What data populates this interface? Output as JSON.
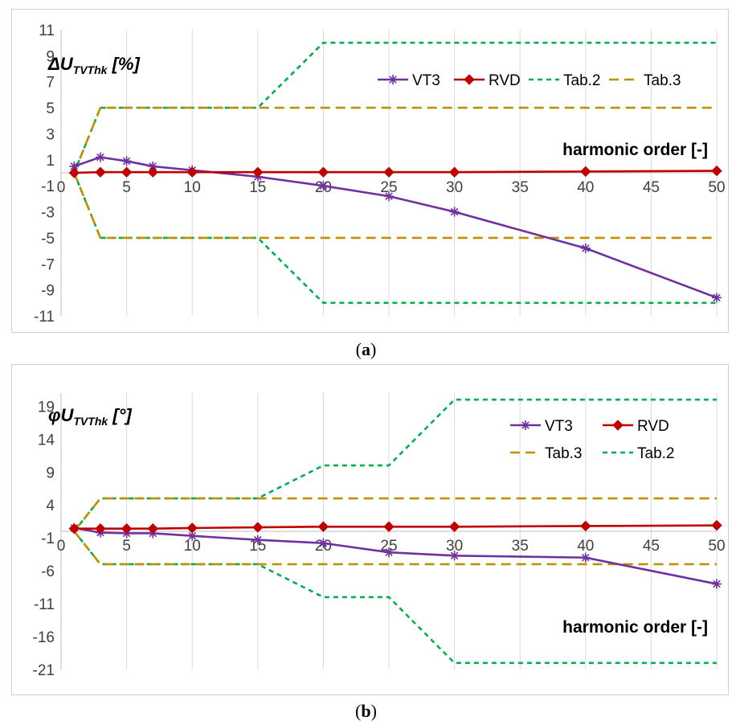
{
  "chart_data": [
    {
      "type": "line",
      "ylabel_main": "ΔU",
      "ylabel_sub": "TVThk",
      "ylabel_unit": "[%]",
      "xlabel": "harmonic order [-]",
      "xlim": [
        0,
        50
      ],
      "ylim": [
        -11,
        11
      ],
      "xticks": [
        0,
        5,
        10,
        15,
        20,
        25,
        30,
        35,
        40,
        45,
        50
      ],
      "yticks": [
        11,
        9,
        7,
        5,
        3,
        1,
        -1,
        -3,
        -5,
        -7,
        -9,
        -11
      ],
      "grid": "vertical",
      "legend": "top-right, one row",
      "colors": {
        "VT3": "#7030a0",
        "RVD": "#c00000",
        "Tab.2": "#00b050",
        "Tab.3": "#bf9000"
      },
      "series": [
        {
          "name": "VT3",
          "marker": "asterisk",
          "x": [
            1,
            3,
            5,
            7,
            10,
            15,
            20,
            25,
            30,
            40,
            50
          ],
          "y": [
            0.5,
            1.2,
            0.9,
            0.5,
            0.2,
            -0.3,
            -1.0,
            -1.8,
            -3.0,
            -5.8,
            -9.6
          ]
        },
        {
          "name": "RVD",
          "marker": "diamond",
          "x": [
            1,
            3,
            5,
            7,
            10,
            15,
            20,
            25,
            30,
            40,
            50
          ],
          "y": [
            0.0,
            0.05,
            0.05,
            0.05,
            0.05,
            0.05,
            0.05,
            0.05,
            0.05,
            0.1,
            0.15
          ]
        },
        {
          "name": "Tab.2",
          "dash": "short",
          "x": [
            1,
            3,
            15,
            20,
            50
          ],
          "y": [
            0,
            5,
            5,
            10,
            10
          ],
          "mirror": true
        },
        {
          "name": "Tab.3",
          "dash": "long",
          "x": [
            1,
            3,
            50
          ],
          "y": [
            0,
            5,
            5
          ],
          "mirror": true
        }
      ],
      "legend_order": [
        "VT3",
        "RVD",
        "Tab.2",
        "Tab.3"
      ],
      "caption": "a"
    },
    {
      "type": "line",
      "ylabel_main": "φU",
      "ylabel_sub": "TVThk",
      "ylabel_unit": "[°]",
      "xlabel": "harmonic order [-]",
      "xlim": [
        0,
        50
      ],
      "ylim": [
        -21,
        21
      ],
      "xticks": [
        0,
        5,
        10,
        15,
        20,
        25,
        30,
        35,
        40,
        45,
        50
      ],
      "yticks": [
        19,
        14,
        9,
        4,
        -1,
        -6,
        -11,
        -16,
        -21
      ],
      "grid": "vertical",
      "legend": "top-right, two rows",
      "colors": {
        "VT3": "#7030a0",
        "RVD": "#c00000",
        "Tab.2": "#00b050",
        "Tab.3": "#bf9000"
      },
      "series": [
        {
          "name": "VT3",
          "marker": "asterisk",
          "x": [
            1,
            3,
            5,
            7,
            10,
            15,
            20,
            25,
            30,
            40,
            50
          ],
          "y": [
            0.5,
            -0.2,
            -0.3,
            -0.3,
            -0.7,
            -1.3,
            -1.8,
            -3.2,
            -3.7,
            -4.0,
            -8.0
          ]
        },
        {
          "name": "RVD",
          "marker": "diamond",
          "x": [
            1,
            3,
            5,
            7,
            10,
            15,
            20,
            25,
            30,
            40,
            50
          ],
          "y": [
            0.4,
            0.4,
            0.4,
            0.4,
            0.5,
            0.6,
            0.7,
            0.7,
            0.7,
            0.8,
            0.9
          ]
        },
        {
          "name": "Tab.3",
          "dash": "long",
          "x": [
            1,
            3,
            50
          ],
          "y": [
            0,
            5,
            5
          ],
          "mirror": true
        },
        {
          "name": "Tab.2",
          "dash": "short",
          "x": [
            1,
            3,
            15,
            20,
            25,
            30,
            50
          ],
          "y": [
            0,
            5,
            5,
            10,
            10,
            20,
            20
          ],
          "mirror": true
        }
      ],
      "legend_order": [
        "VT3",
        "RVD",
        "Tab.3",
        "Tab.2"
      ],
      "caption": "b"
    }
  ],
  "captions": {
    "a": {
      "open": "(",
      "letter": "a",
      "close": ")"
    },
    "b": {
      "open": "(",
      "letter": "b",
      "close": ")"
    }
  }
}
